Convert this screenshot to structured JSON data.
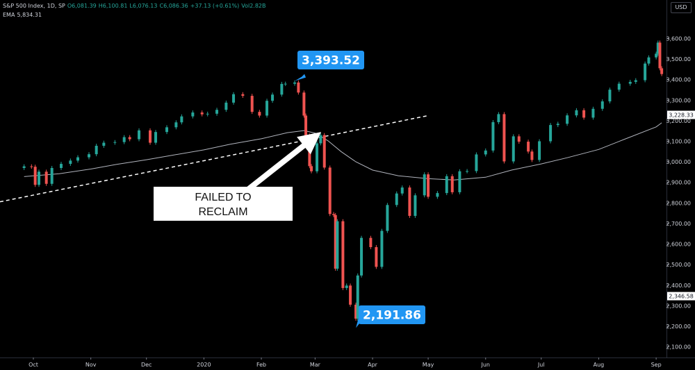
{
  "legend": {
    "symbol": "S&P 500 Index, 1D, SP",
    "open": "O6,081.39",
    "high": "H6,100.81",
    "low": "L6,076.13",
    "close": "C6,086.36",
    "change": "+37.13 (+0.61%)",
    "volume": "Vol2.82B",
    "ema_label": "EMA",
    "ema_value": "5,834.31"
  },
  "currency_button": "USD",
  "chart_data": {
    "type": "candlestick",
    "title": "",
    "y_axis": {
      "ticks": [
        2100,
        2200,
        2300,
        2400,
        2500,
        2600,
        2700,
        2800,
        2900,
        3000,
        3100,
        3200,
        3300,
        3400,
        3500,
        3600
      ],
      "tick_labels": [
        "2,100.00",
        "2,200.00",
        "2,300.00",
        "2,400.00",
        "2,500.00",
        "2,600.00",
        "2,700.00",
        "2,800.00",
        "2,900.00",
        "3,000.00",
        "3,100.00",
        "3,200.00",
        "3,300.00",
        "3,400.00",
        "3,500.00",
        "3,600.00"
      ],
      "range": [
        2040,
        3660
      ]
    },
    "x_axis": {
      "labels": [
        "Oct",
        "Nov",
        "Dec",
        "2020",
        "Feb",
        "Mar",
        "Apr",
        "May",
        "Jun",
        "Jul",
        "Aug",
        "Sep"
      ],
      "label_dates": [
        "2019-10-01",
        "2019-11-01",
        "2019-12-01",
        "2020-01-01",
        "2020-02-01",
        "2020-03-01",
        "2020-04-01",
        "2020-05-01",
        "2020-06-01",
        "2020-07-01",
        "2020-08-01",
        "2020-09-01"
      ]
    },
    "price_tags": [
      {
        "label": "3,228.33",
        "value": 3228.33
      },
      {
        "label": "2,346.58",
        "value": 2346.58
      }
    ],
    "close_series": [
      [
        "2019-09-26",
        2978
      ],
      [
        "2019-09-30",
        2976
      ],
      [
        "2019-10-02",
        2888
      ],
      [
        "2019-10-04",
        2952
      ],
      [
        "2019-10-08",
        2893
      ],
      [
        "2019-10-11",
        2970
      ],
      [
        "2019-10-16",
        2990
      ],
      [
        "2019-10-21",
        3006
      ],
      [
        "2019-10-25",
        3022
      ],
      [
        "2019-10-31",
        3037
      ],
      [
        "2019-11-04",
        3078
      ],
      [
        "2019-11-08",
        3093
      ],
      [
        "2019-11-14",
        3096
      ],
      [
        "2019-11-19",
        3120
      ],
      [
        "2019-11-22",
        3110
      ],
      [
        "2019-11-27",
        3153
      ],
      [
        "2019-12-03",
        3093
      ],
      [
        "2019-12-06",
        3145
      ],
      [
        "2019-12-12",
        3168
      ],
      [
        "2019-12-17",
        3192
      ],
      [
        "2019-12-20",
        3221
      ],
      [
        "2019-12-26",
        3240
      ],
      [
        "2019-12-31",
        3231
      ],
      [
        "2020-01-03",
        3234
      ],
      [
        "2020-01-08",
        3253
      ],
      [
        "2020-01-13",
        3288
      ],
      [
        "2020-01-17",
        3329
      ],
      [
        "2020-01-22",
        3321
      ],
      [
        "2020-01-27",
        3243
      ],
      [
        "2020-01-31",
        3225
      ],
      [
        "2020-02-04",
        3297
      ],
      [
        "2020-02-07",
        3327
      ],
      [
        "2020-02-12",
        3379
      ],
      [
        "2020-02-14",
        3380
      ],
      [
        "2020-02-19",
        3386
      ],
      [
        "2020-02-21",
        3337
      ],
      [
        "2020-02-24",
        3225
      ],
      [
        "2020-02-25",
        3128
      ],
      [
        "2020-02-27",
        2979
      ],
      [
        "2020-02-28",
        2954
      ],
      [
        "2020-03-02",
        3090
      ],
      [
        "2020-03-04",
        3130
      ],
      [
        "2020-03-06",
        2972
      ],
      [
        "2020-03-09",
        2746
      ],
      [
        "2020-03-11",
        2741
      ],
      [
        "2020-03-12",
        2480
      ],
      [
        "2020-03-13",
        2711
      ],
      [
        "2020-03-16",
        2386
      ],
      [
        "2020-03-18",
        2398
      ],
      [
        "2020-03-20",
        2305
      ],
      [
        "2020-03-23",
        2237
      ],
      [
        "2020-03-24",
        2447
      ],
      [
        "2020-03-26",
        2630
      ],
      [
        "2020-03-31",
        2585
      ],
      [
        "2020-04-03",
        2489
      ],
      [
        "2020-04-06",
        2664
      ],
      [
        "2020-04-09",
        2790
      ],
      [
        "2020-04-14",
        2846
      ],
      [
        "2020-04-17",
        2875
      ],
      [
        "2020-04-21",
        2737
      ],
      [
        "2020-04-24",
        2837
      ],
      [
        "2020-04-29",
        2939
      ],
      [
        "2020-05-01",
        2830
      ],
      [
        "2020-05-06",
        2848
      ],
      [
        "2020-05-11",
        2930
      ],
      [
        "2020-05-14",
        2852
      ],
      [
        "2020-05-18",
        2954
      ],
      [
        "2020-05-22",
        2955
      ],
      [
        "2020-05-27",
        3036
      ],
      [
        "2020-06-01",
        3055
      ],
      [
        "2020-06-05",
        3193
      ],
      [
        "2020-06-08",
        3232
      ],
      [
        "2020-06-11",
        3002
      ],
      [
        "2020-06-16",
        3124
      ],
      [
        "2020-06-19",
        3098
      ],
      [
        "2020-06-24",
        3050
      ],
      [
        "2020-06-26",
        3009
      ],
      [
        "2020-06-30",
        3100
      ],
      [
        "2020-07-06",
        3179
      ],
      [
        "2020-07-10",
        3185
      ],
      [
        "2020-07-15",
        3226
      ],
      [
        "2020-07-20",
        3251
      ],
      [
        "2020-07-24",
        3215
      ],
      [
        "2020-07-29",
        3258
      ],
      [
        "2020-08-03",
        3294
      ],
      [
        "2020-08-07",
        3351
      ],
      [
        "2020-08-12",
        3380
      ],
      [
        "2020-08-18",
        3389
      ],
      [
        "2020-08-21",
        3397
      ],
      [
        "2020-08-26",
        3478
      ],
      [
        "2020-08-28",
        3508
      ],
      [
        "2020-09-01",
        3526
      ],
      [
        "2020-09-02",
        3580
      ],
      [
        "2020-09-03",
        3455
      ],
      [
        "2020-09-04",
        3427
      ]
    ],
    "ema_series": [
      [
        "2019-09-26",
        2928
      ],
      [
        "2019-10-15",
        2942
      ],
      [
        "2019-11-01",
        2965
      ],
      [
        "2019-11-15",
        2988
      ],
      [
        "2019-12-01",
        3010
      ],
      [
        "2019-12-15",
        3032
      ],
      [
        "2020-01-01",
        3058
      ],
      [
        "2020-01-15",
        3085
      ],
      [
        "2020-02-01",
        3112
      ],
      [
        "2020-02-15",
        3142
      ],
      [
        "2020-02-24",
        3152
      ],
      [
        "2020-03-01",
        3140
      ],
      [
        "2020-03-08",
        3102
      ],
      [
        "2020-03-15",
        3050
      ],
      [
        "2020-03-23",
        3000
      ],
      [
        "2020-04-01",
        2960
      ],
      [
        "2020-04-15",
        2932
      ],
      [
        "2020-05-01",
        2918
      ],
      [
        "2020-05-15",
        2912
      ],
      [
        "2020-06-01",
        2925
      ],
      [
        "2020-06-15",
        2960
      ],
      [
        "2020-07-01",
        2990
      ],
      [
        "2020-07-15",
        3020
      ],
      [
        "2020-08-01",
        3060
      ],
      [
        "2020-08-15",
        3110
      ],
      [
        "2020-09-01",
        3170
      ],
      [
        "2020-09-04",
        3190
      ]
    ],
    "trendline": [
      [
        "2019-09-26",
        2829
      ],
      [
        "2020-05-01",
        3225
      ]
    ],
    "annotations": [
      {
        "text": "3,393.52",
        "date": "2020-02-19",
        "value": 3393.52
      },
      {
        "text": "2,191.86",
        "date": "2020-03-23",
        "value": 2191.86
      },
      {
        "text": "FAILED TO RECLAIM",
        "line1": "FAILED TO",
        "line2": "RECLAIM"
      }
    ]
  }
}
